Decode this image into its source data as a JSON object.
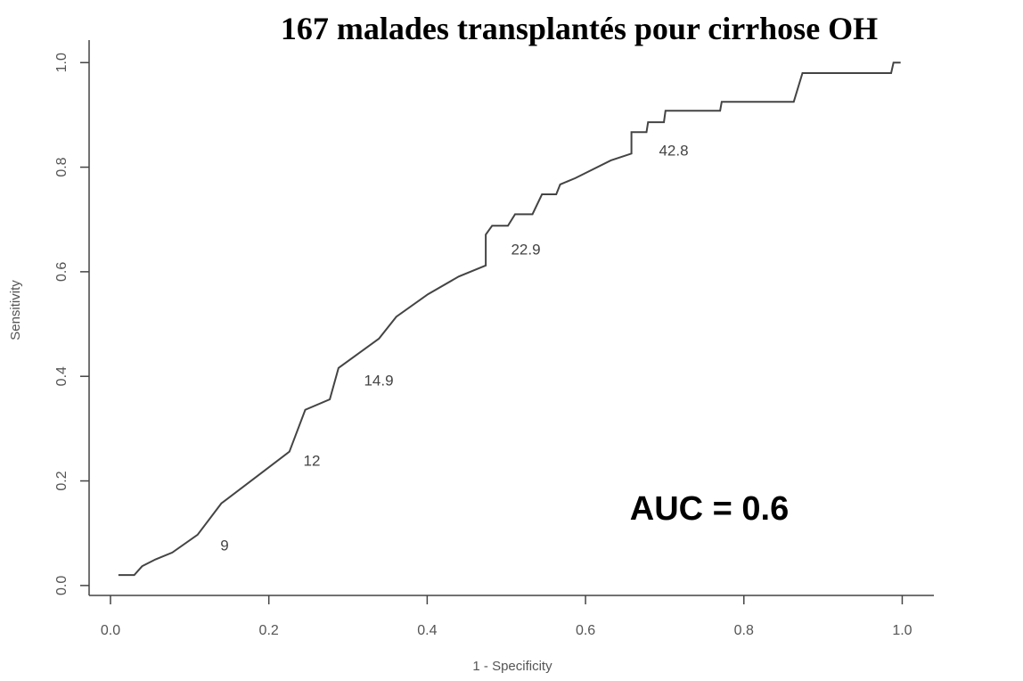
{
  "chart_data": {
    "type": "line",
    "title": "167 malades transplantés pour cirrhose OH",
    "x_label": "1 - Specificity",
    "y_label": "Sensitivity",
    "annotations": [
      "9",
      "12",
      "14.9",
      "22.9",
      "42.8"
    ],
    "auc_label": "AUC = 0.6",
    "color": "#444444",
    "x": [
      0.01,
      0.03,
      0.04,
      0.057,
      0.078,
      0.11,
      0.14,
      0.187,
      0.226,
      0.246,
      0.277,
      0.288,
      0.339,
      0.361,
      0.401,
      0.44,
      0.474,
      0.474,
      0.482,
      0.502,
      0.511,
      0.533,
      0.545,
      0.563,
      0.568,
      0.587,
      0.632,
      0.658,
      0.658,
      0.677,
      0.679,
      0.699,
      0.701,
      0.77,
      0.772,
      0.863,
      0.874,
      0.986,
      0.989,
      0.998
    ],
    "values": [
      0.02,
      0.02,
      0.037,
      0.05,
      0.063,
      0.097,
      0.157,
      0.211,
      0.256,
      0.336,
      0.356,
      0.416,
      0.472,
      0.514,
      0.557,
      0.591,
      0.612,
      0.671,
      0.688,
      0.688,
      0.71,
      0.71,
      0.748,
      0.748,
      0.767,
      0.779,
      0.813,
      0.826,
      0.867,
      0.867,
      0.886,
      0.886,
      0.908,
      0.908,
      0.925,
      0.925,
      0.98,
      0.98,
      1.0,
      1.0
    ],
    "xlim": [
      -0.027,
      1.04
    ],
    "ylim": [
      -0.019,
      1.043
    ],
    "xticks": [
      {
        "value": 0,
        "label": "0.0"
      },
      0.2,
      0.4,
      0.6,
      0.8,
      {
        "value": 1,
        "label": "1.0"
      }
    ],
    "yticks": [
      {
        "value": 0,
        "label": "0.0"
      },
      0.2,
      0.4,
      0.6,
      0.8,
      {
        "value": 1,
        "label": "1.0"
      }
    ]
  }
}
